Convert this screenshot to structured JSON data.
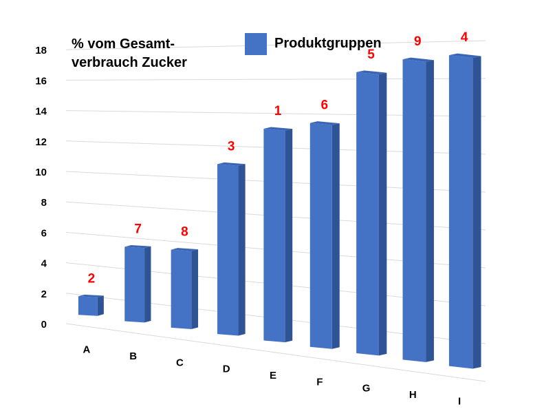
{
  "chart_data": {
    "type": "bar",
    "style": "3d-column",
    "ylabel_lines": [
      "% vom Gesamt-",
      "verbrauch Zucker"
    ],
    "legend": "Produktgruppen",
    "legend_position": "top",
    "categories": [
      "A",
      "B",
      "C",
      "D",
      "E",
      "F",
      "G",
      "H",
      "I"
    ],
    "values": [
      1.2,
      4.7,
      4.8,
      10.2,
      12.4,
      12.8,
      15.7,
      16.4,
      16.6
    ],
    "data_labels": [
      "2",
      "7",
      "8",
      "3",
      "1",
      "6",
      "5",
      "9",
      "4"
    ],
    "yticks": [
      0,
      2,
      4,
      6,
      8,
      10,
      12,
      14,
      16,
      18
    ],
    "ylim": [
      0,
      18
    ],
    "grid": true,
    "colors": {
      "bar_front": "#4472C4",
      "bar_side": "#2F5496",
      "bar_top": "#3A64B4",
      "grid": "#D9D9D9",
      "data_label": "#FF0000"
    }
  }
}
